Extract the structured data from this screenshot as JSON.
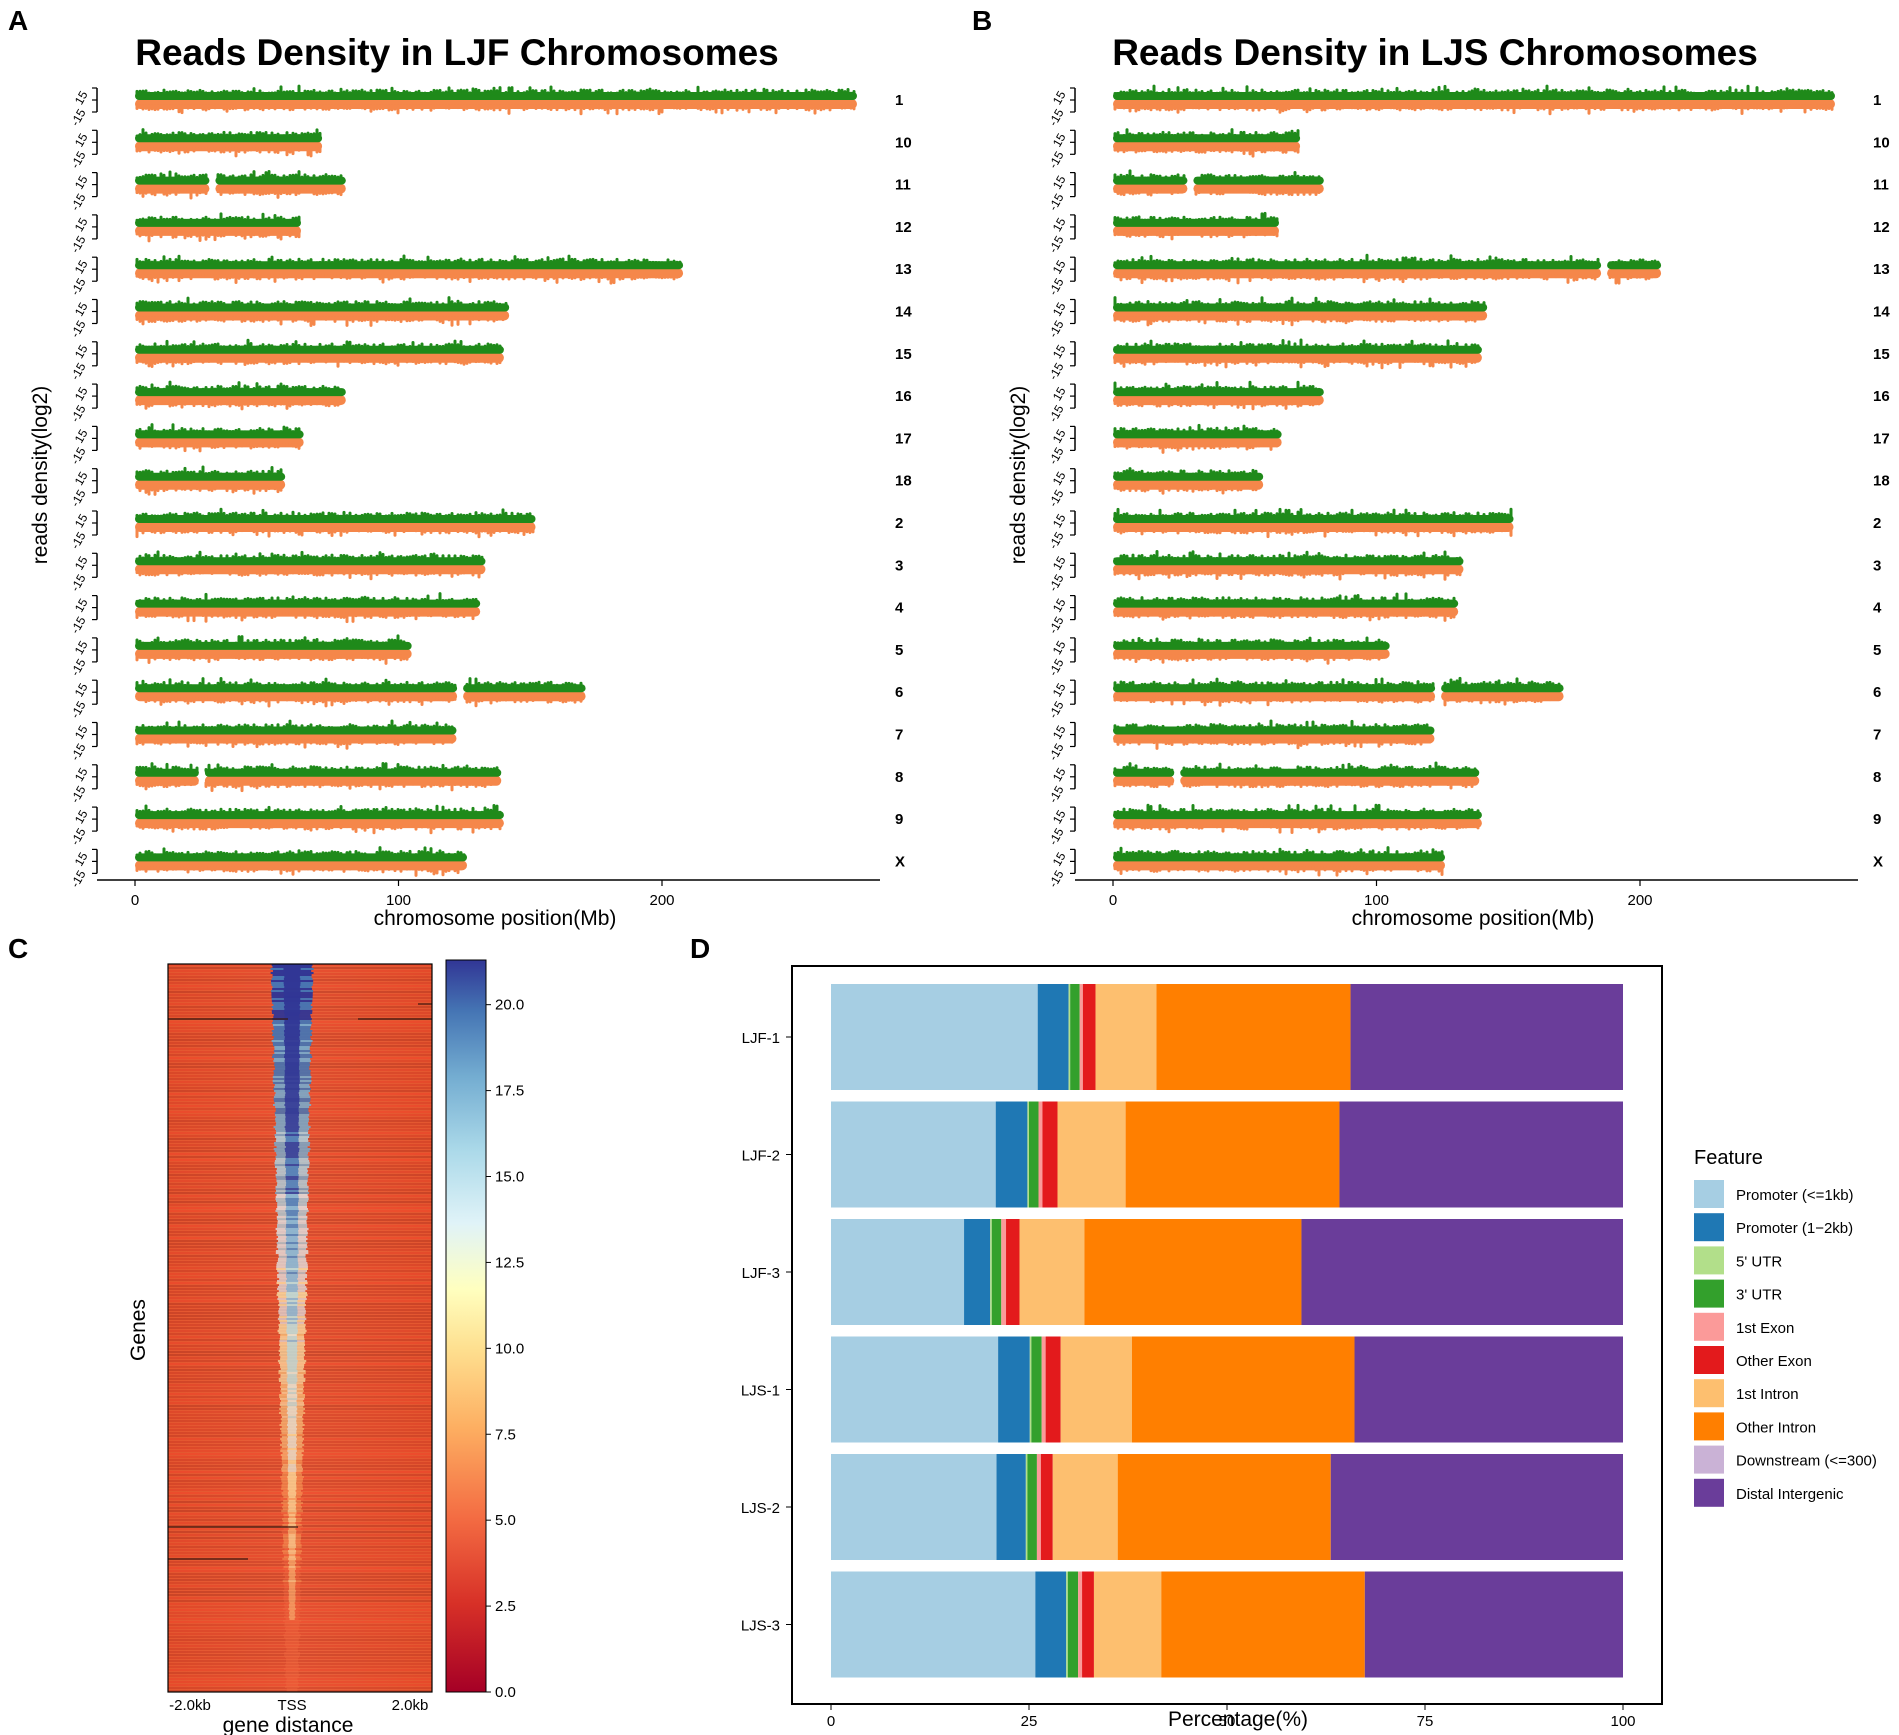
{
  "panels": {
    "A": {
      "letter": "A",
      "title": "Reads Density in LJF Chromosomes"
    },
    "B": {
      "letter": "B",
      "title": "Reads Density in LJS Chromosomes"
    },
    "C": {
      "letter": "C"
    },
    "D": {
      "letter": "D"
    }
  },
  "colors": {
    "upper_track": "#1f8a1a",
    "lower_track": "#f5874a",
    "axis": "#000000"
  },
  "chart_data": [
    {
      "type": "scatter",
      "panel": "A",
      "title": "Reads Density in LJF Chromosomes",
      "xlabel": "chromosome position(Mb)",
      "ylabel": "reads density(log2)",
      "xlim": [
        0,
        285
      ],
      "x_ticks": [
        "0",
        "100",
        "200"
      ],
      "track_tick_label": "15",
      "track_tick_mid": "-15",
      "chromosomes": [
        {
          "name": "1",
          "length_mb": 274,
          "gaps_mb": []
        },
        {
          "name": "10",
          "length_mb": 71,
          "gaps_mb": []
        },
        {
          "name": "11",
          "length_mb": 80,
          "gaps_mb": [
            29
          ]
        },
        {
          "name": "12",
          "length_mb": 63,
          "gaps_mb": []
        },
        {
          "name": "13",
          "length_mb": 208,
          "gaps_mb": []
        },
        {
          "name": "14",
          "length_mb": 142,
          "gaps_mb": []
        },
        {
          "name": "15",
          "length_mb": 140,
          "gaps_mb": []
        },
        {
          "name": "16",
          "length_mb": 80,
          "gaps_mb": []
        },
        {
          "name": "17",
          "length_mb": 64,
          "gaps_mb": []
        },
        {
          "name": "18",
          "length_mb": 57,
          "gaps_mb": []
        },
        {
          "name": "2",
          "length_mb": 152,
          "gaps_mb": []
        },
        {
          "name": "3",
          "length_mb": 133,
          "gaps_mb": []
        },
        {
          "name": "4",
          "length_mb": 131,
          "gaps_mb": []
        },
        {
          "name": "5",
          "length_mb": 105,
          "gaps_mb": []
        },
        {
          "name": "6",
          "length_mb": 171,
          "gaps_mb": [
            123
          ]
        },
        {
          "name": "7",
          "length_mb": 122,
          "gaps_mb": []
        },
        {
          "name": "8",
          "length_mb": 139,
          "gaps_mb": [
            25
          ]
        },
        {
          "name": "9",
          "length_mb": 140,
          "gaps_mb": []
        },
        {
          "name": "X",
          "length_mb": 126,
          "gaps_mb": []
        }
      ]
    },
    {
      "type": "scatter",
      "panel": "B",
      "title": "Reads Density in LJS Chromosomes",
      "xlabel": "chromosome position(Mb)",
      "ylabel": "reads density(log2)",
      "xlim": [
        0,
        285
      ],
      "x_ticks": [
        "0",
        "100",
        "200"
      ],
      "track_tick_label": "15",
      "track_tick_mid": "-15",
      "chromosomes": [
        {
          "name": "1",
          "length_mb": 274,
          "gaps_mb": []
        },
        {
          "name": "10",
          "length_mb": 71,
          "gaps_mb": []
        },
        {
          "name": "11",
          "length_mb": 80,
          "gaps_mb": [
            29
          ]
        },
        {
          "name": "12",
          "length_mb": 63,
          "gaps_mb": []
        },
        {
          "name": "13",
          "length_mb": 208,
          "gaps_mb": [
            186
          ]
        },
        {
          "name": "14",
          "length_mb": 142,
          "gaps_mb": []
        },
        {
          "name": "15",
          "length_mb": 140,
          "gaps_mb": []
        },
        {
          "name": "16",
          "length_mb": 80,
          "gaps_mb": []
        },
        {
          "name": "17",
          "length_mb": 64,
          "gaps_mb": []
        },
        {
          "name": "18",
          "length_mb": 57,
          "gaps_mb": []
        },
        {
          "name": "2",
          "length_mb": 152,
          "gaps_mb": []
        },
        {
          "name": "3",
          "length_mb": 133,
          "gaps_mb": []
        },
        {
          "name": "4",
          "length_mb": 131,
          "gaps_mb": []
        },
        {
          "name": "5",
          "length_mb": 105,
          "gaps_mb": []
        },
        {
          "name": "6",
          "length_mb": 171,
          "gaps_mb": [
            123
          ]
        },
        {
          "name": "7",
          "length_mb": 122,
          "gaps_mb": []
        },
        {
          "name": "8",
          "length_mb": 139,
          "gaps_mb": [
            24
          ]
        },
        {
          "name": "9",
          "length_mb": 140,
          "gaps_mb": []
        },
        {
          "name": "X",
          "length_mb": 126,
          "gaps_mb": []
        }
      ]
    },
    {
      "type": "heatmap",
      "panel": "C",
      "ylabel": "Genes",
      "xlabel": "gene distance",
      "x_ticks": [
        "-2.0kb",
        "TSS",
        "2.0kb"
      ],
      "colorbar_ticks": [
        "20.0",
        "17.5",
        "15.0",
        "12.5",
        "10.0",
        "7.5",
        "5.0",
        "2.5",
        "0.0"
      ],
      "color_range": [
        0,
        21.3
      ]
    },
    {
      "type": "bar",
      "panel": "D",
      "orientation": "horizontal",
      "stacked": true,
      "xlabel": "Percentage(%)",
      "x_ticks": [
        "0",
        "25",
        "50",
        "75",
        "100"
      ],
      "xlim": [
        0,
        100
      ],
      "legend_title": "Feature",
      "categories": [
        "LJF-1",
        "LJF-2",
        "LJF-3",
        "LJS-1",
        "LJS-2",
        "LJS-3"
      ],
      "series": [
        {
          "name": "Promoter (<=1kb)",
          "color": "#a6cee3",
          "values": [
            26.1,
            20.8,
            16.8,
            21.1,
            20.9,
            25.8
          ]
        },
        {
          "name": "Promoter (1−2kb)",
          "color": "#1f78b4",
          "values": [
            3.9,
            4.0,
            3.3,
            4.0,
            3.7,
            3.9
          ]
        },
        {
          "name": "5' UTR",
          "color": "#b2df8a",
          "values": [
            0.2,
            0.2,
            0.2,
            0.2,
            0.2,
            0.2
          ]
        },
        {
          "name": "3' UTR",
          "color": "#33a02c",
          "values": [
            1.2,
            1.2,
            1.2,
            1.3,
            1.2,
            1.3
          ]
        },
        {
          "name": "1st Exon",
          "color": "#fb9a99",
          "values": [
            0.4,
            0.5,
            0.6,
            0.5,
            0.5,
            0.5
          ]
        },
        {
          "name": "Other Exon",
          "color": "#e31a1c",
          "values": [
            1.6,
            1.9,
            1.7,
            1.9,
            1.5,
            1.5
          ]
        },
        {
          "name": "1st Intron",
          "color": "#fdbf6f",
          "values": [
            7.7,
            8.6,
            8.2,
            9.0,
            8.2,
            8.5
          ]
        },
        {
          "name": "Other Intron",
          "color": "#ff7f00",
          "values": [
            24.5,
            27.0,
            27.4,
            28.1,
            26.9,
            25.7
          ]
        },
        {
          "name": "Downstream (<=300)",
          "color": "#cab2d6",
          "values": [
            0.0,
            0.0,
            0.0,
            0.0,
            0.0,
            0.0
          ]
        },
        {
          "name": "Distal Intergenic",
          "color": "#6a3d9a",
          "values": [
            34.4,
            35.8,
            40.6,
            33.9,
            36.9,
            32.6
          ]
        }
      ]
    }
  ]
}
